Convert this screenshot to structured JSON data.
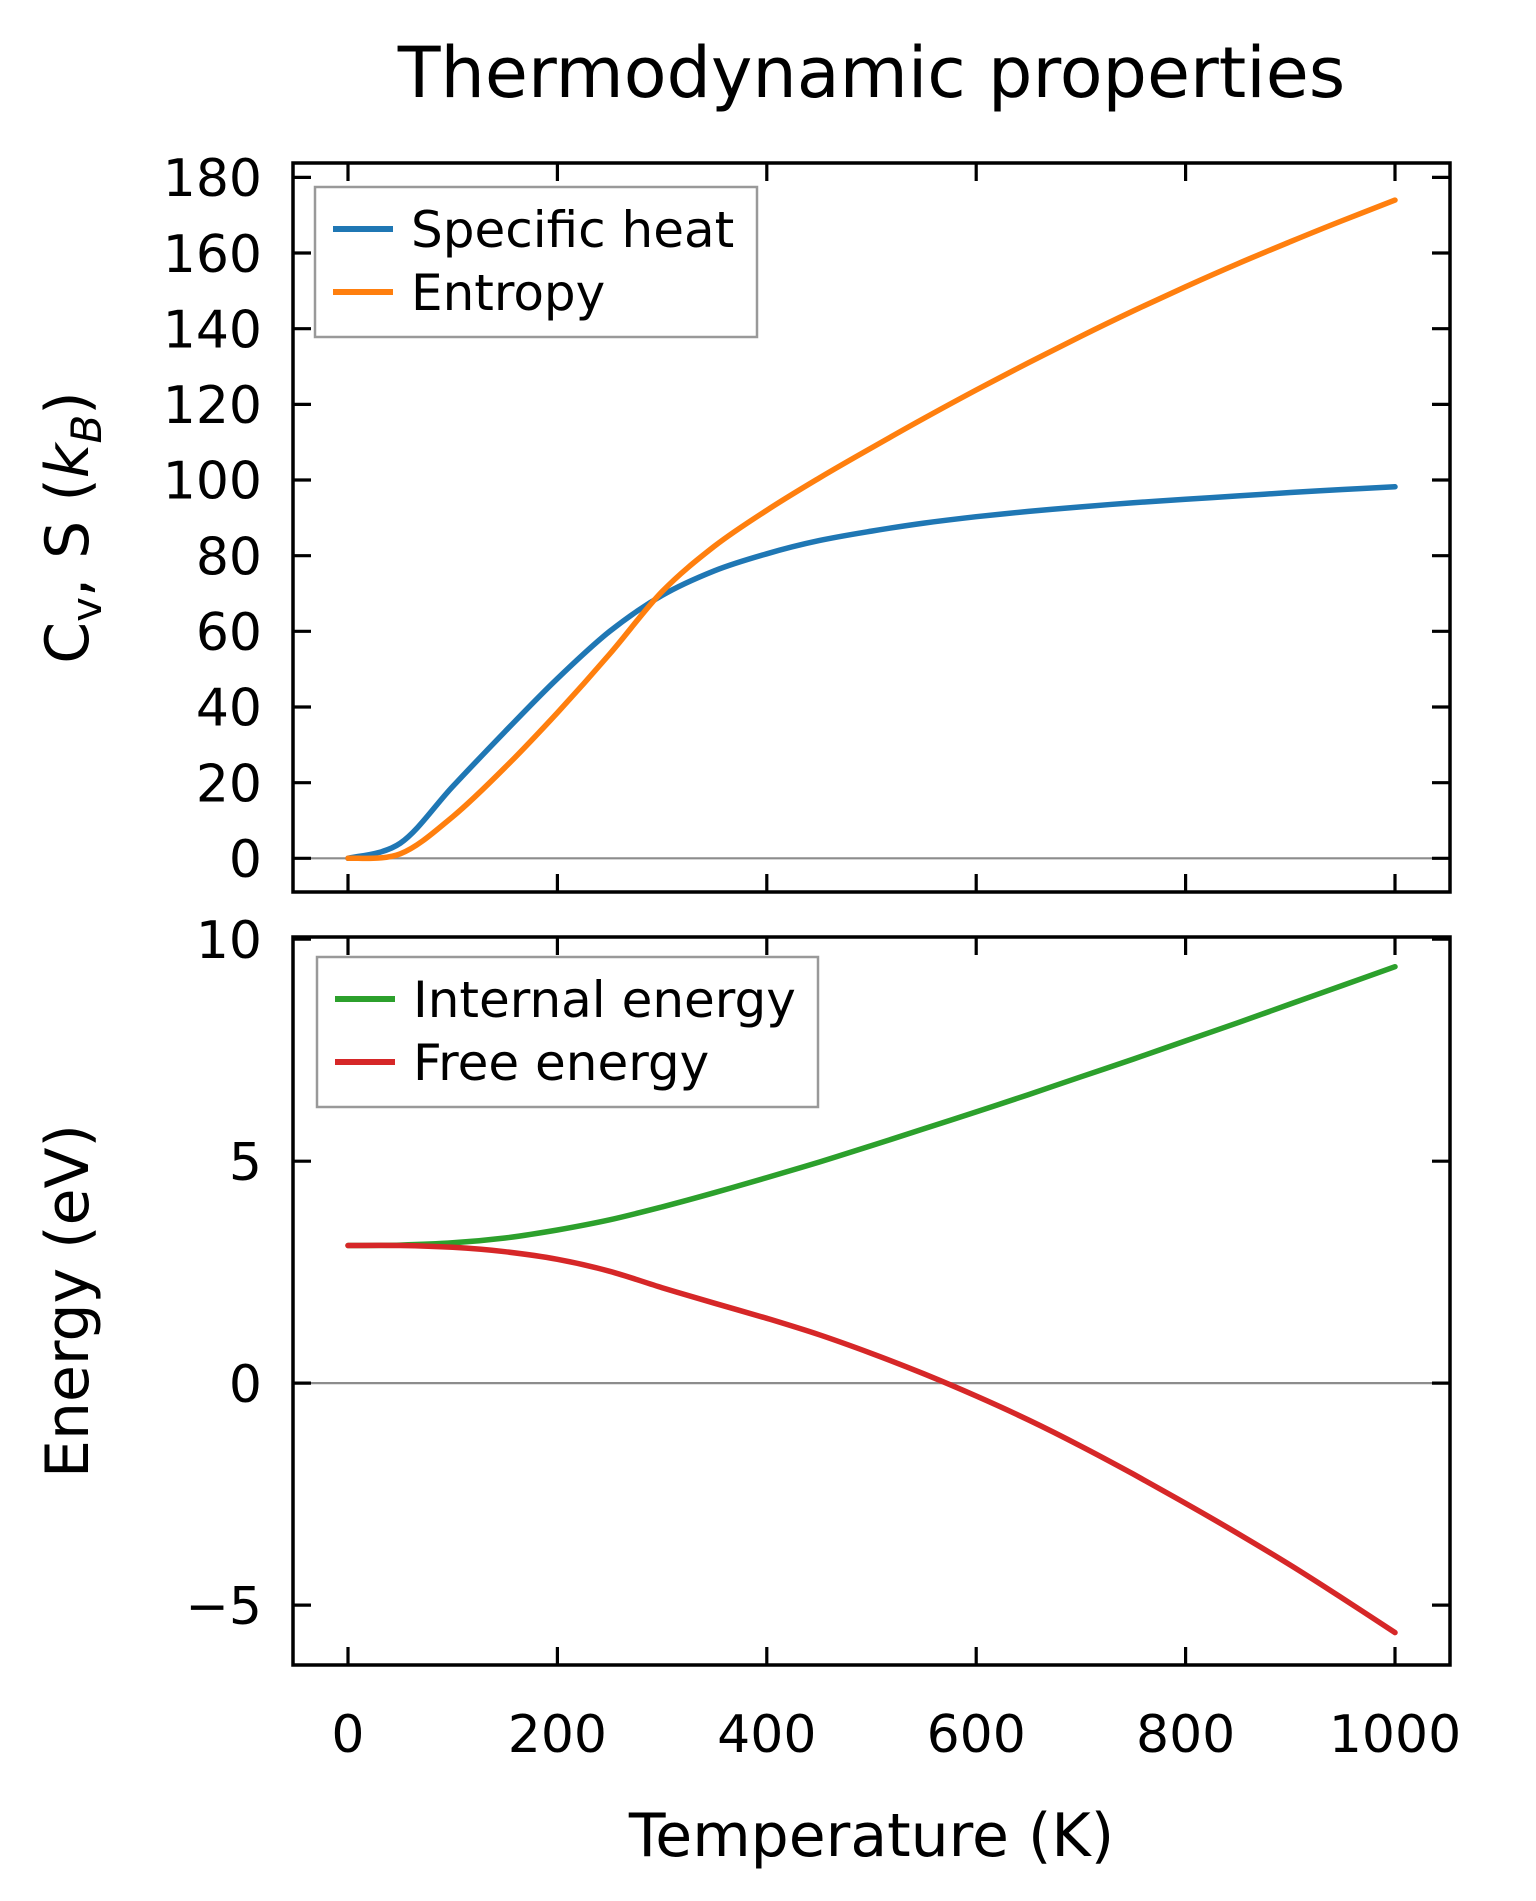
{
  "figure": {
    "title": "Thermodynamic properties",
    "background": "#ffffff",
    "zero_line_color": "#8c8c8c",
    "spine_color": "#000000",
    "legend_border_color": "#999999"
  },
  "chart_data": [
    {
      "type": "line",
      "title": "Thermodynamic properties",
      "xlabel": "",
      "ylabel_plain": "Cv, S (kB)",
      "ylabel_parts": [
        {
          "text": "C"
        },
        {
          "text": "v",
          "sub": true
        },
        {
          "text": ", S ("
        },
        {
          "text": "k",
          "italic": true
        },
        {
          "text": "B",
          "sub": true,
          "italic": true
        },
        {
          "text": ")"
        }
      ],
      "xlim": [
        -52.5,
        1052.5
      ],
      "ylim": [
        -8.9,
        183.8
      ],
      "xticks": [
        0,
        200,
        400,
        600,
        800,
        1000
      ],
      "yticks": [
        0,
        20,
        40,
        60,
        80,
        100,
        120,
        140,
        160,
        180
      ],
      "x_tick_labels_visible": false,
      "grid": false,
      "zero_line": true,
      "legend_position": "upper-left",
      "x": [
        0,
        50,
        100,
        150,
        200,
        250,
        300,
        350,
        400,
        450,
        500,
        550,
        600,
        650,
        700,
        750,
        800,
        850,
        900,
        950,
        1000
      ],
      "series": [
        {
          "name": "Specific heat",
          "color": "#1f77b4",
          "values": [
            0,
            4,
            19,
            33.5,
            47.5,
            60,
            69.5,
            76,
            80.5,
            84,
            86.5,
            88.6,
            90.3,
            91.7,
            92.9,
            94,
            94.9,
            95.8,
            96.7,
            97.5,
            98.2
          ]
        },
        {
          "name": "Entropy",
          "color": "#ff7f0e",
          "values": [
            0,
            1.2,
            11,
            24,
            38.5,
            54,
            70.5,
            82.5,
            92,
            100.5,
            108.5,
            116.3,
            123.8,
            131,
            138,
            144.7,
            151.1,
            157.2,
            163,
            168.6,
            174
          ]
        }
      ]
    },
    {
      "type": "line",
      "title": "",
      "xlabel": "Temperature (K)",
      "ylabel_plain": "Energy (eV)",
      "ylabel_parts": [
        {
          "text": "Energy (eV)"
        }
      ],
      "xlim": [
        -52.5,
        1052.5
      ],
      "ylim": [
        -6.35,
        10.05
      ],
      "xticks": [
        0,
        200,
        400,
        600,
        800,
        1000
      ],
      "yticks": [
        -5,
        0,
        5,
        10
      ],
      "x_tick_labels_visible": true,
      "grid": false,
      "zero_line": true,
      "legend_position": "upper-left",
      "x": [
        0,
        50,
        100,
        150,
        200,
        250,
        300,
        350,
        400,
        450,
        500,
        550,
        600,
        650,
        700,
        750,
        800,
        850,
        900,
        950,
        1000
      ],
      "series": [
        {
          "name": "Internal energy",
          "color": "#2ca02c",
          "values": [
            3.1,
            3.11,
            3.16,
            3.27,
            3.45,
            3.68,
            3.97,
            4.29,
            4.63,
            4.98,
            5.35,
            5.73,
            6.11,
            6.5,
            6.9,
            7.3,
            7.71,
            8.12,
            8.54,
            8.96,
            9.38
          ]
        },
        {
          "name": "Free energy",
          "color": "#d62728",
          "values": [
            3.1,
            3.1,
            3.06,
            2.96,
            2.79,
            2.52,
            2.15,
            1.8,
            1.46,
            1.09,
            0.67,
            0.21,
            -0.29,
            -0.83,
            -1.42,
            -2.05,
            -2.71,
            -3.39,
            -4.1,
            -4.85,
            -5.62
          ]
        }
      ]
    }
  ]
}
